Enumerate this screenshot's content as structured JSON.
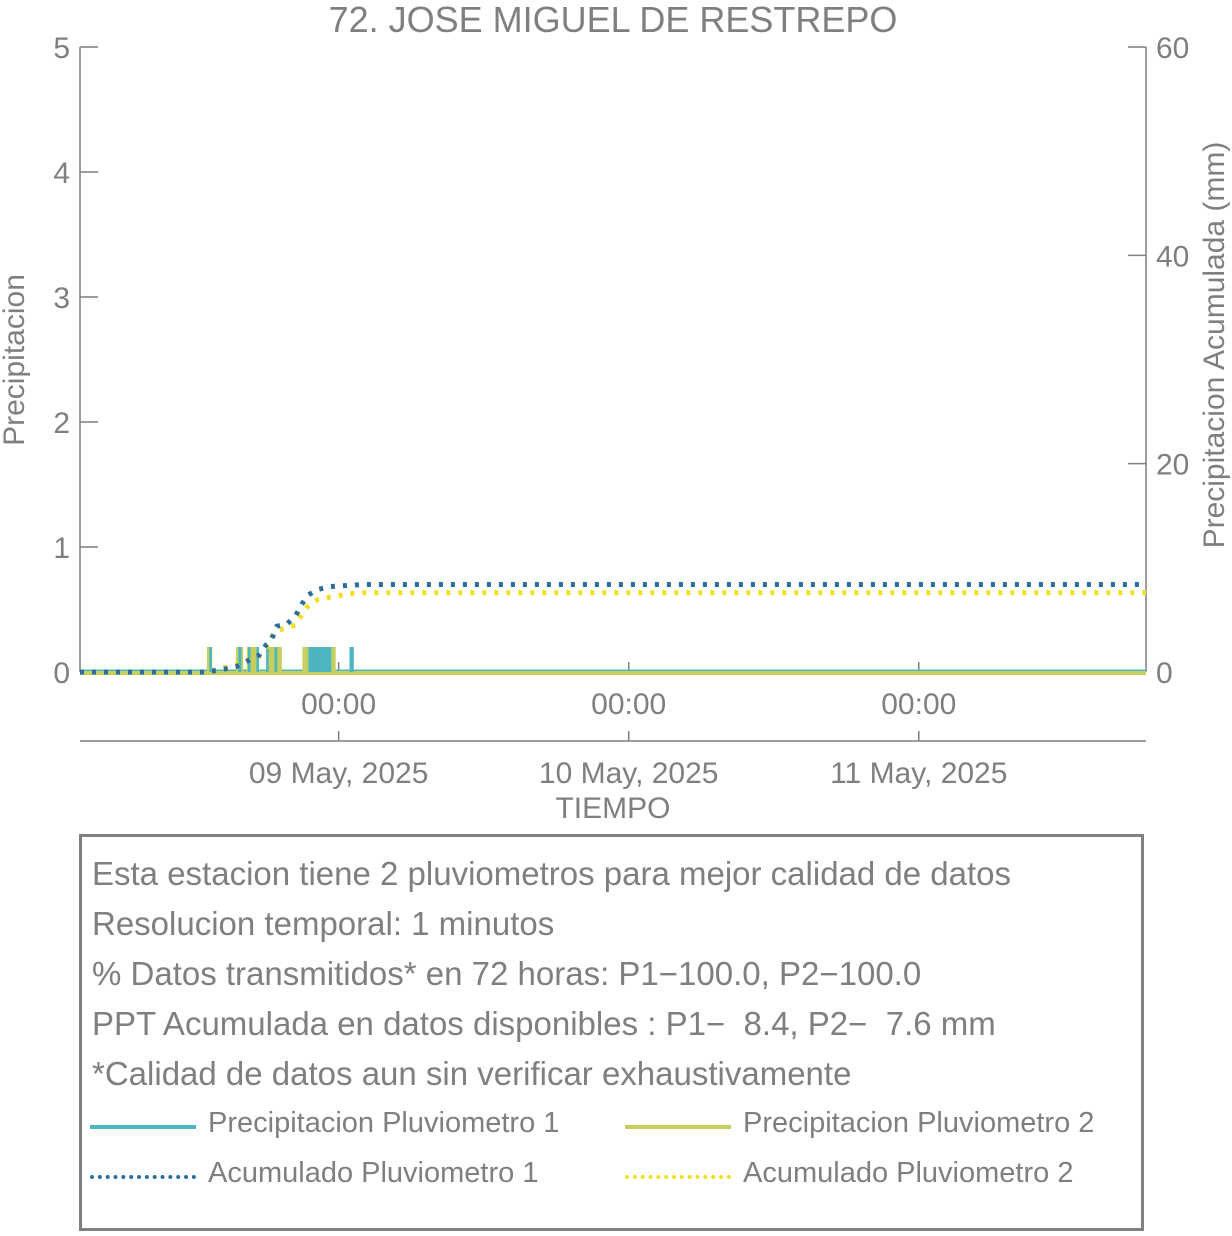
{
  "chart_data": {
    "type": "bar+line",
    "title": "72. JOSE MIGUEL DE RESTREPO",
    "xlabel": "TIEMPO",
    "ylabel_left": "Precipitacion",
    "ylabel_right": "Precipitacion Acumulada (mm)",
    "ylim_left": [
      0,
      5
    ],
    "ylim_right": [
      0,
      60
    ],
    "yticks_left": [
      "0",
      "1",
      "2",
      "3",
      "4",
      "5"
    ],
    "yticks_right": [
      "0",
      "20",
      "40",
      "60"
    ],
    "xlim_hours": [
      -21.4,
      66.8
    ],
    "xticks": [
      {
        "hour": 0,
        "time": "00:00",
        "date": "09 May, 2025"
      },
      {
        "hour": 24,
        "time": "00:00",
        "date": "10 May, 2025"
      },
      {
        "hour": 48,
        "time": "00:00",
        "date": "11 May, 2025"
      }
    ],
    "grid": false,
    "series": [
      {
        "name": "Precipitacion Pluviometro 1",
        "kind": "bars",
        "axis": "left",
        "color": "#4bb5c1",
        "bars": [
          {
            "t": -10.7,
            "w": 0.2,
            "v": 0.2
          },
          {
            "t": -8.3,
            "w": 0.25,
            "v": 0.2
          },
          {
            "t": -7.5,
            "w": 0.15,
            "v": 0.2
          },
          {
            "t": -6.8,
            "w": 0.1,
            "v": 0.2
          },
          {
            "t": -6.0,
            "w": 0.2,
            "v": 0.2
          },
          {
            "t": -5.3,
            "w": 0.1,
            "v": 0.2
          },
          {
            "t": -2.5,
            "w": 1.9,
            "v": 0.2
          },
          {
            "t": -2.2,
            "w": 0.15,
            "v": 0.2
          },
          {
            "t": 0.9,
            "w": 0.35,
            "v": 0.2
          }
        ]
      },
      {
        "name": "Precipitacion Pluviometro 2",
        "kind": "bars",
        "axis": "left",
        "color": "#c5cf5d",
        "bars": [
          {
            "t": -10.9,
            "w": 0.45,
            "v": 0.2
          },
          {
            "t": -8.5,
            "w": 0.6,
            "v": 0.2
          },
          {
            "t": -7.6,
            "w": 0.8,
            "v": 0.2
          },
          {
            "t": -5.8,
            "w": 1.1,
            "v": 0.2
          },
          {
            "t": -3.0,
            "w": 1.9,
            "v": 0.2
          },
          {
            "t": -0.6,
            "w": 0.35,
            "v": 0.2
          }
        ]
      },
      {
        "name": "Acumulado Pluviometro 1",
        "kind": "dotted-line",
        "axis": "right",
        "color": "#2c6e9b",
        "x": [
          -21.4,
          -11.0,
          -9.8,
          -8.5,
          -7.3,
          -6.6,
          -6.0,
          -5.6,
          -5.1,
          -4.3,
          -3.6,
          -3.0,
          -2.5,
          -1.8,
          -0.7,
          2.0,
          66.8
        ],
        "y": [
          0,
          0,
          0.2,
          0.5,
          1.2,
          1.6,
          2.6,
          3.0,
          4.4,
          4.6,
          5.3,
          6.6,
          7.4,
          7.9,
          8.2,
          8.4,
          8.4
        ]
      },
      {
        "name": "Acumulado Pluviometro 2",
        "kind": "dotted-line",
        "axis": "right",
        "color": "#f2df1f",
        "x": [
          -21.4,
          -11.0,
          -9.8,
          -8.5,
          -7.3,
          -6.6,
          -6.0,
          -5.6,
          -5.1,
          -4.3,
          -3.6,
          -3.0,
          -2.5,
          -1.8,
          -0.7,
          1.5,
          66.8
        ],
        "y": [
          0,
          0,
          0.3,
          0.7,
          1.2,
          1.5,
          2.4,
          3.3,
          4.0,
          4.2,
          4.5,
          5.6,
          6.4,
          6.9,
          7.2,
          7.6,
          7.6
        ]
      }
    ]
  },
  "info": {
    "lines": [
      "Esta estacion tiene 2 pluviometros para mejor calidad de datos",
      "Resolucion temporal: 1 minutos",
      "% Datos transmitidos* en 72 horas: P1−100.0, P2−100.0",
      "PPT Acumulada en datos disponibles : P1−  8.4, P2−  7.6 mm",
      "*Calidad de datos aun sin verificar exhaustivamente"
    ]
  },
  "legend": {
    "p1_label": "Precipitacion Pluviometro 1",
    "p2_label": "Precipitacion Pluviometro 2",
    "a1_label": "Acumulado Pluviometro 1",
    "a2_label": "Acumulado Pluviometro 2",
    "p1_color": "#4bb5c1",
    "p2_color": "#c5cf5d",
    "a1_color": "#2c6e9b",
    "a2_color": "#f2df1f"
  }
}
